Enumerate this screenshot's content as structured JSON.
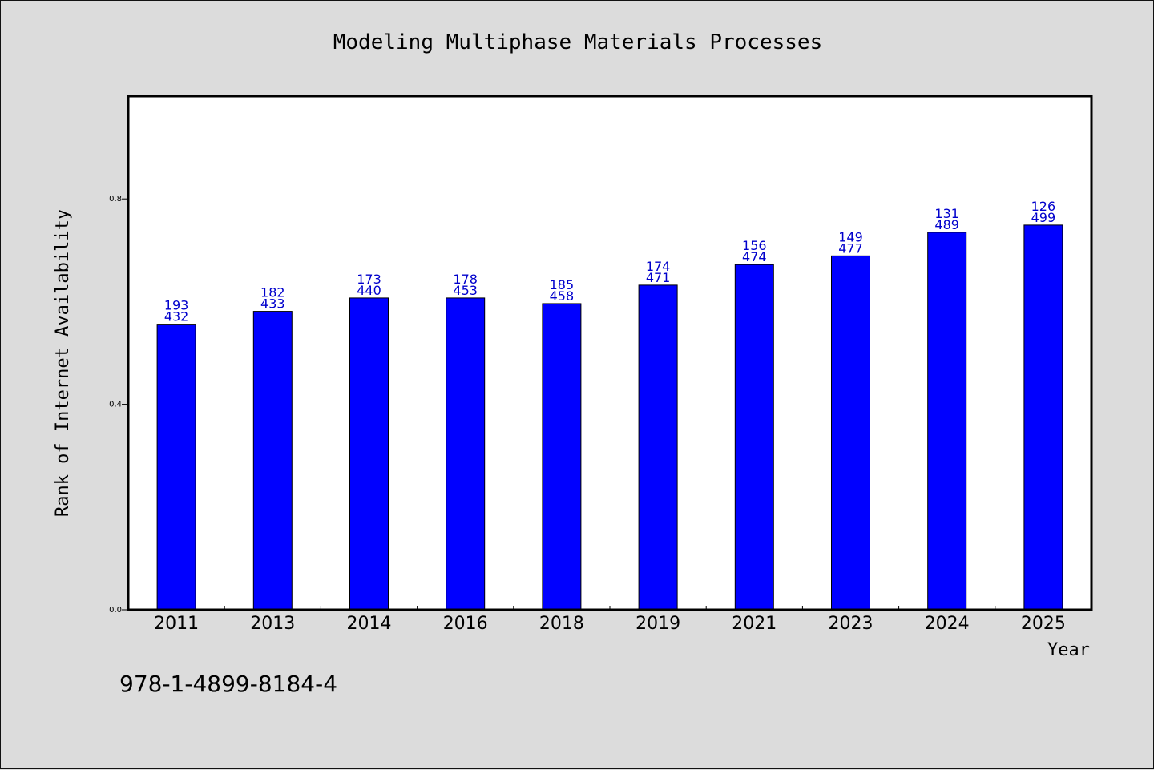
{
  "colors": {
    "background": "#dcdcdc",
    "plot_background": "#ffffff",
    "bar": "#0000ff",
    "bar_edge": "#000000",
    "data_label": "#0000cc"
  },
  "footer": {
    "isbn": "978-1-4899-8184-4"
  },
  "chart_data": {
    "type": "bar",
    "title": "Modeling Multiphase Materials Processes",
    "xlabel": "Year",
    "ylabel": "Rank of Internet Availability",
    "categories": [
      "2011",
      "2013",
      "2014",
      "2016",
      "2018",
      "2019",
      "2021",
      "2023",
      "2024",
      "2025"
    ],
    "values": [
      0.556,
      0.581,
      0.607,
      0.607,
      0.596,
      0.632,
      0.672,
      0.689,
      0.735,
      0.749
    ],
    "labels_top": [
      "193",
      "182",
      "173",
      "178",
      "185",
      "174",
      "156",
      "149",
      "131",
      "126"
    ],
    "labels_bottom": [
      "432",
      "433",
      "440",
      "453",
      "458",
      "471",
      "474",
      "477",
      "489",
      "499"
    ],
    "ylim": [
      0,
      1.0
    ],
    "yticks": [
      "0.0",
      "0.4",
      "0.8"
    ],
    "ytick_values": [
      0.0,
      0.4,
      0.8
    ],
    "grid": false,
    "legend": "none"
  }
}
